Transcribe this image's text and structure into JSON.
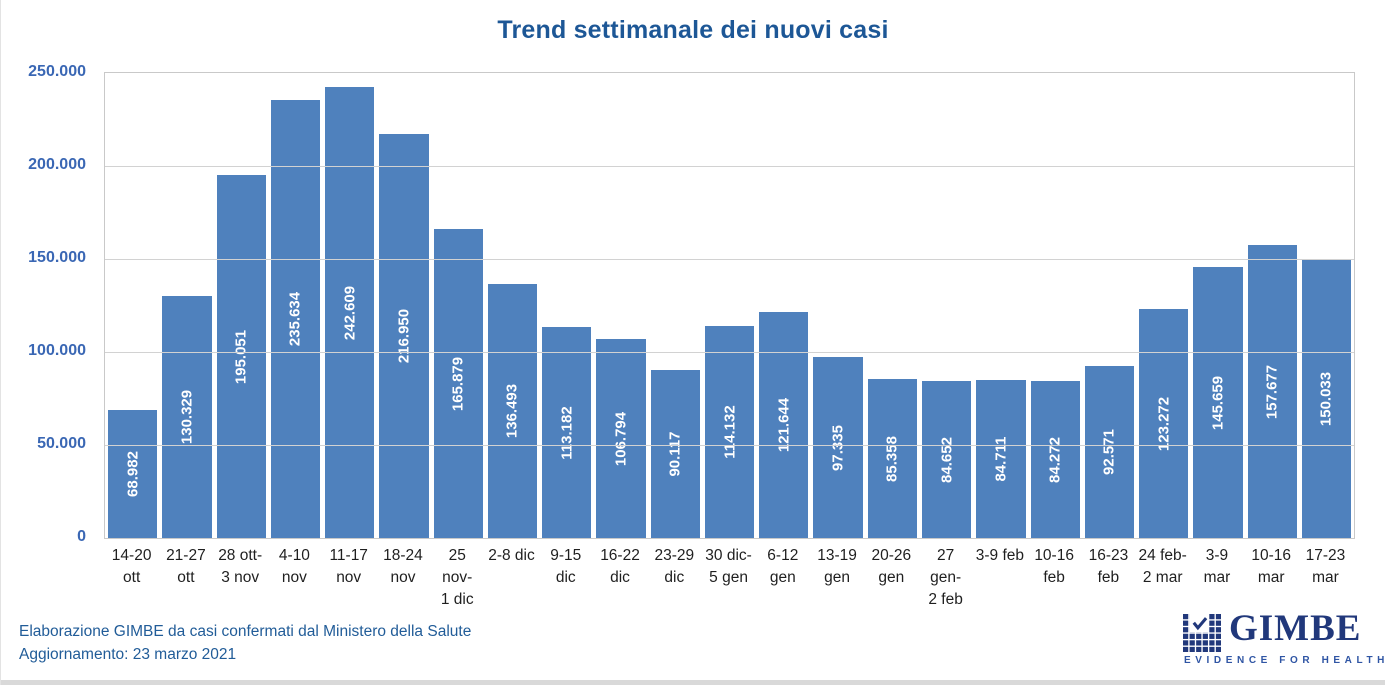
{
  "title": "Trend settimanale dei nuovi casi",
  "chart_data": {
    "type": "bar",
    "title": "Trend settimanale dei nuovi casi",
    "categories": [
      "14-20\nott",
      "21-27\nott",
      "28 ott-\n3 nov",
      "4-10\nnov",
      "11-17\nnov",
      "18-24\nnov",
      "25 nov-\n1 dic",
      "2-8 dic",
      "9-15\ndic",
      "16-22\ndic",
      "23-29\ndic",
      "30 dic-\n5 gen",
      "6-12\ngen",
      "13-19\ngen",
      "20-26\ngen",
      "27 gen-\n2 feb",
      "3-9 feb",
      "10-16\nfeb",
      "16-23\nfeb",
      "24 feb-\n2 mar",
      "3-9\nmar",
      "10-16\nmar",
      "17-23\nmar"
    ],
    "values": [
      68982,
      130329,
      195051,
      235634,
      242609,
      216950,
      165879,
      136493,
      113182,
      106794,
      90117,
      114132,
      121644,
      97335,
      85358,
      84652,
      84711,
      84272,
      92571,
      123272,
      145659,
      157677,
      150033
    ],
    "value_labels": [
      "68.982",
      "130.329",
      "195.051",
      "235.634",
      "242.609",
      "216.950",
      "165.879",
      "136.493",
      "113.182",
      "106.794",
      "90.117",
      "114.132",
      "121.644",
      "97.335",
      "85.358",
      "84.652",
      "84.711",
      "84.272",
      "92.571",
      "123.272",
      "145.659",
      "157.677",
      "150.033"
    ],
    "xlabel": "",
    "ylabel": "",
    "ylim": [
      0,
      250000
    ],
    "ytick_labels": [
      "250.000",
      "200.000",
      "150.000",
      "100.000",
      "50.000",
      "0"
    ],
    "grid": "horizontal",
    "legend": "none",
    "bar_color": "#4f81bd",
    "value_label_color": "#ffffff"
  },
  "footer": {
    "line1": "Elaborazione GIMBE da casi confermati dal Ministero della Salute",
    "line2": "Aggiornamento: 23 marzo 2021"
  },
  "logo": {
    "wordmark": "GIMBE",
    "tagline": "EVIDENCE FOR HEALTH",
    "icon": "gimbe-check-grid-icon",
    "color": "#21387b"
  },
  "colors": {
    "title_text": "#1d5796",
    "axis_tick_text": "#3a67b4",
    "bar_fill": "#4f81bd",
    "gridline": "#d2d2d2",
    "footer_text": "#215c98",
    "x_tick_text": "#1f1f1f"
  }
}
